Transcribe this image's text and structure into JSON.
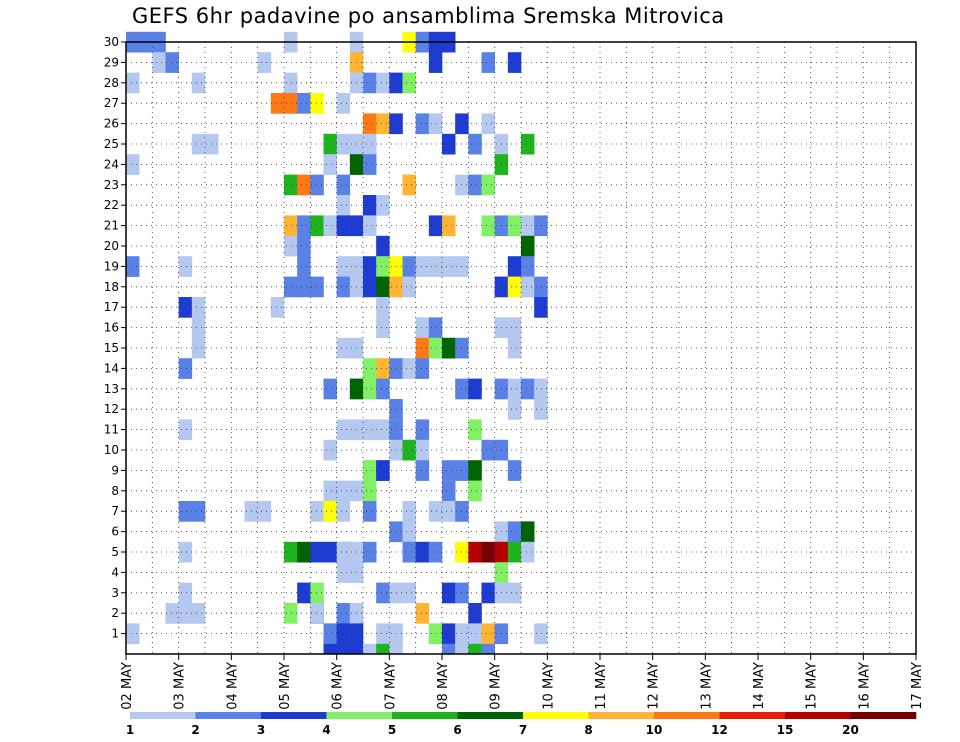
{
  "chart_data": {
    "type": "heatmap",
    "title": "GEFS 6hr padavine po ansamblima Sremska Mitrovica",
    "xlabel": "",
    "ylabel": "",
    "y_ticks": [
      1,
      2,
      3,
      4,
      5,
      6,
      7,
      8,
      9,
      10,
      11,
      12,
      13,
      14,
      15,
      16,
      17,
      18,
      19,
      20,
      21,
      22,
      23,
      24,
      25,
      26,
      27,
      28,
      29,
      30
    ],
    "x_ticks": [
      "02 MAY",
      "03 MAY",
      "04 MAY",
      "05 MAY",
      "06 MAY",
      "07 MAY",
      "08 MAY",
      "09 MAY",
      "10 MAY",
      "11 MAY",
      "12 MAY",
      "13 MAY",
      "14 MAY",
      "15 MAY",
      "16 MAY",
      "17 MAY"
    ],
    "x_range": [
      "02 MAY 00Z",
      "17 MAY 00Z"
    ],
    "time_step_hours": 6,
    "y_range": [
      0,
      30
    ],
    "grid": true,
    "colorbar": {
      "placement": "bottom",
      "labels": [
        "1",
        "2",
        "3",
        "4",
        "5",
        "6",
        "7",
        "8",
        "10",
        "12",
        "15",
        "20"
      ],
      "colors": [
        "#b4c8f0",
        "#5a82e6",
        "#1e3cd2",
        "#82f064",
        "#1eb41e",
        "#006400",
        "#ffff00",
        "#ffb432",
        "#ff7814",
        "#e61e0a",
        "#b40000",
        "#780000"
      ]
    },
    "cells": [
      [
        1,
        30,
        0
      ],
      [
        1,
        30,
        1
      ],
      [
        1,
        30,
        2
      ],
      [
        0,
        30,
        12
      ],
      [
        0,
        30,
        17
      ],
      [
        6,
        30,
        21
      ],
      [
        1,
        30,
        22
      ],
      [
        2,
        30,
        23
      ],
      [
        2,
        30,
        24
      ],
      [
        0,
        29,
        2
      ],
      [
        1,
        29,
        3
      ],
      [
        0,
        29,
        10
      ],
      [
        7,
        29,
        17
      ],
      [
        2,
        29,
        23
      ],
      [
        1,
        29,
        27
      ],
      [
        2,
        29,
        29
      ],
      [
        0,
        28,
        0
      ],
      [
        0,
        28,
        5
      ],
      [
        1,
        28,
        18
      ],
      [
        0,
        28,
        19
      ],
      [
        2,
        28,
        20
      ],
      [
        3,
        28,
        21
      ],
      [
        0,
        28,
        12
      ],
      [
        0,
        28,
        17
      ],
      [
        8,
        27,
        11
      ],
      [
        8,
        27,
        12
      ],
      [
        1,
        27,
        13
      ],
      [
        6,
        27,
        14
      ],
      [
        0,
        27,
        16
      ],
      [
        8,
        26,
        18
      ],
      [
        7,
        26,
        19
      ],
      [
        2,
        26,
        20
      ],
      [
        1,
        26,
        22
      ],
      [
        0,
        26,
        23
      ],
      [
        2,
        26,
        25
      ],
      [
        0,
        26,
        27
      ],
      [
        0,
        25,
        5
      ],
      [
        0,
        25,
        6
      ],
      [
        4,
        25,
        15
      ],
      [
        0,
        25,
        16
      ],
      [
        0,
        25,
        17
      ],
      [
        0,
        25,
        18
      ],
      [
        2,
        25,
        24
      ],
      [
        1,
        25,
        26
      ],
      [
        0,
        25,
        28
      ],
      [
        4,
        25,
        30
      ],
      [
        0,
        24,
        0
      ],
      [
        0,
        24,
        15
      ],
      [
        5,
        24,
        17
      ],
      [
        1,
        24,
        18
      ],
      [
        4,
        24,
        28
      ],
      [
        4,
        23,
        12
      ],
      [
        8,
        23,
        13
      ],
      [
        1,
        23,
        14
      ],
      [
        1,
        23,
        16
      ],
      [
        7,
        23,
        21
      ],
      [
        0,
        23,
        25
      ],
      [
        1,
        23,
        26
      ],
      [
        3,
        23,
        27
      ],
      [
        0,
        22,
        16
      ],
      [
        2,
        22,
        18
      ],
      [
        0,
        22,
        19
      ],
      [
        7,
        21,
        12
      ],
      [
        1,
        21,
        13
      ],
      [
        4,
        21,
        14
      ],
      [
        0,
        21,
        15
      ],
      [
        2,
        21,
        16
      ],
      [
        2,
        21,
        17
      ],
      [
        0,
        21,
        18
      ],
      [
        2,
        21,
        23
      ],
      [
        7,
        21,
        24
      ],
      [
        3,
        21,
        27
      ],
      [
        1,
        21,
        28
      ],
      [
        3,
        21,
        29
      ],
      [
        0,
        21,
        30
      ],
      [
        1,
        21,
        31
      ],
      [
        0,
        20,
        12
      ],
      [
        1,
        20,
        13
      ],
      [
        2,
        20,
        19
      ],
      [
        5,
        20,
        30
      ],
      [
        1,
        19,
        0
      ],
      [
        0,
        19,
        4
      ],
      [
        1,
        19,
        13
      ],
      [
        0,
        19,
        16
      ],
      [
        0,
        19,
        17
      ],
      [
        2,
        19,
        18
      ],
      [
        3,
        19,
        19
      ],
      [
        6,
        19,
        20
      ],
      [
        1,
        19,
        21
      ],
      [
        0,
        19,
        22
      ],
      [
        0,
        19,
        23
      ],
      [
        0,
        19,
        24
      ],
      [
        0,
        19,
        25
      ],
      [
        2,
        19,
        29
      ],
      [
        1,
        19,
        30
      ],
      [
        1,
        18,
        12
      ],
      [
        1,
        18,
        13
      ],
      [
        1,
        18,
        14
      ],
      [
        1,
        18,
        16
      ],
      [
        0,
        18,
        17
      ],
      [
        2,
        18,
        18
      ],
      [
        5,
        18,
        19
      ],
      [
        7,
        18,
        20
      ],
      [
        0,
        18,
        21
      ],
      [
        2,
        18,
        28
      ],
      [
        6,
        18,
        29
      ],
      [
        0,
        18,
        30
      ],
      [
        1,
        18,
        31
      ],
      [
        2,
        17,
        4
      ],
      [
        0,
        17,
        5
      ],
      [
        0,
        17,
        11
      ],
      [
        0,
        17,
        19
      ],
      [
        2,
        17,
        31
      ],
      [
        0,
        16,
        5
      ],
      [
        0,
        16,
        19
      ],
      [
        0,
        16,
        22
      ],
      [
        1,
        16,
        23
      ],
      [
        0,
        16,
        28
      ],
      [
        0,
        16,
        29
      ],
      [
        0,
        15,
        5
      ],
      [
        0,
        15,
        16
      ],
      [
        0,
        15,
        17
      ],
      [
        8,
        15,
        22
      ],
      [
        3,
        15,
        23
      ],
      [
        0,
        15,
        24
      ],
      [
        5,
        15,
        24
      ],
      [
        1,
        15,
        25
      ],
      [
        0,
        15,
        29
      ],
      [
        1,
        14,
        4
      ],
      [
        3,
        14,
        18
      ],
      [
        7,
        14,
        19
      ],
      [
        1,
        14,
        20
      ],
      [
        0,
        14,
        21
      ],
      [
        1,
        14,
        22
      ],
      [
        1,
        13,
        15
      ],
      [
        0,
        13,
        17
      ],
      [
        5,
        13,
        17
      ],
      [
        3,
        13,
        18
      ],
      [
        1,
        13,
        19
      ],
      [
        1,
        13,
        25
      ],
      [
        2,
        13,
        26
      ],
      [
        1,
        13,
        28
      ],
      [
        0,
        13,
        29
      ],
      [
        1,
        13,
        30
      ],
      [
        0,
        13,
        31
      ],
      [
        1,
        12,
        20
      ],
      [
        0,
        12,
        29
      ],
      [
        0,
        12,
        31
      ],
      [
        0,
        11,
        4
      ],
      [
        0,
        11,
        16
      ],
      [
        0,
        11,
        17
      ],
      [
        0,
        11,
        18
      ],
      [
        0,
        11,
        19
      ],
      [
        0,
        11,
        20
      ],
      [
        1,
        11,
        20
      ],
      [
        1,
        11,
        22
      ],
      [
        3,
        11,
        26
      ],
      [
        0,
        10,
        15
      ],
      [
        0,
        10,
        20
      ],
      [
        0,
        10,
        21
      ],
      [
        4,
        10,
        21
      ],
      [
        0,
        10,
        22
      ],
      [
        1,
        10,
        27
      ],
      [
        1,
        10,
        28
      ],
      [
        0,
        9,
        18
      ],
      [
        3,
        9,
        18
      ],
      [
        1,
        9,
        19
      ],
      [
        2,
        9,
        19
      ],
      [
        1,
        9,
        22
      ],
      [
        1,
        9,
        24
      ],
      [
        1,
        9,
        25
      ],
      [
        5,
        9,
        26
      ],
      [
        1,
        9,
        29
      ],
      [
        0,
        8,
        15
      ],
      [
        0,
        8,
        16
      ],
      [
        0,
        8,
        17
      ],
      [
        0,
        8,
        18
      ],
      [
        3,
        8,
        18
      ],
      [
        1,
        8,
        24
      ],
      [
        3,
        8,
        26
      ],
      [
        1,
        7,
        4
      ],
      [
        1,
        7,
        5
      ],
      [
        0,
        7,
        9
      ],
      [
        0,
        7,
        10
      ],
      [
        0,
        7,
        14
      ],
      [
        0,
        7,
        15
      ],
      [
        6,
        7,
        15
      ],
      [
        0,
        7,
        16
      ],
      [
        1,
        7,
        18
      ],
      [
        0,
        7,
        21
      ],
      [
        0,
        7,
        23
      ],
      [
        0,
        7,
        24
      ],
      [
        0,
        7,
        25
      ],
      [
        1,
        7,
        25
      ],
      [
        1,
        6,
        20
      ],
      [
        0,
        6,
        21
      ],
      [
        0,
        6,
        28
      ],
      [
        1,
        6,
        29
      ],
      [
        5,
        6,
        30
      ],
      [
        0,
        5,
        4
      ],
      [
        4,
        5,
        12
      ],
      [
        5,
        5,
        13
      ],
      [
        2,
        5,
        14
      ],
      [
        2,
        5,
        15
      ],
      [
        1,
        5,
        16
      ],
      [
        0,
        5,
        16
      ],
      [
        0,
        5,
        17
      ],
      [
        1,
        5,
        18
      ],
      [
        1,
        5,
        21
      ],
      [
        2,
        5,
        22
      ],
      [
        1,
        5,
        23
      ],
      [
        0,
        5,
        25
      ],
      [
        6,
        5,
        25
      ],
      [
        10,
        5,
        26
      ],
      [
        11,
        5,
        27
      ],
      [
        10,
        5,
        28
      ],
      [
        4,
        5,
        29
      ],
      [
        0,
        5,
        30
      ],
      [
        0,
        4,
        16
      ],
      [
        0,
        4,
        17
      ],
      [
        3,
        4,
        28
      ],
      [
        0,
        3,
        4
      ],
      [
        2,
        3,
        13
      ],
      [
        3,
        3,
        14
      ],
      [
        1,
        3,
        19
      ],
      [
        0,
        3,
        20
      ],
      [
        0,
        3,
        21
      ],
      [
        2,
        3,
        24
      ],
      [
        1,
        3,
        25
      ],
      [
        2,
        3,
        27
      ],
      [
        0,
        3,
        28
      ],
      [
        0,
        3,
        29
      ],
      [
        0,
        2,
        3
      ],
      [
        0,
        2,
        4
      ],
      [
        0,
        2,
        5
      ],
      [
        3,
        2,
        12
      ],
      [
        5,
        2,
        14
      ],
      [
        0,
        2,
        14
      ],
      [
        1,
        2,
        16
      ],
      [
        0,
        2,
        17
      ],
      [
        7,
        2,
        22
      ],
      [
        2,
        2,
        26
      ],
      [
        0,
        1,
        0
      ],
      [
        0,
        1,
        15
      ],
      [
        1,
        1,
        15
      ],
      [
        2,
        1,
        16
      ],
      [
        2,
        1,
        17
      ],
      [
        0,
        1,
        19
      ],
      [
        0,
        1,
        20
      ],
      [
        3,
        1,
        23
      ],
      [
        2,
        1,
        24
      ],
      [
        0,
        1,
        25
      ],
      [
        0,
        1,
        26
      ],
      [
        7,
        1,
        27
      ],
      [
        1,
        1,
        28
      ],
      [
        0,
        1,
        31
      ],
      [
        2,
        0,
        15
      ],
      [
        2,
        0,
        16
      ],
      [
        2,
        0,
        17
      ],
      [
        0,
        0,
        18
      ],
      [
        4,
        0,
        19
      ],
      [
        0,
        0,
        20
      ],
      [
        1,
        0,
        24
      ],
      [
        0,
        0,
        25
      ],
      [
        4,
        0,
        26
      ],
      [
        1,
        0,
        27
      ]
    ]
  }
}
